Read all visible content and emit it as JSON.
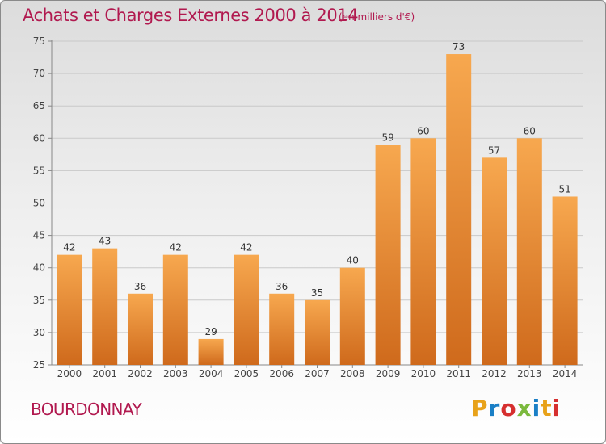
{
  "header": {
    "title": "Achats et Charges Externes 2000 à 2014",
    "subtitle": "(en milliers d'€)"
  },
  "footer": {
    "commune": "BOURDONNAY",
    "logo_text": "Proxiti",
    "logo_colors": [
      "#e8a21a",
      "#1a7fc6",
      "#d62f2f",
      "#7bb93d",
      "#1a7fc6",
      "#e8a21a",
      "#d62f2f"
    ]
  },
  "chart_data": {
    "type": "bar",
    "title": "Achats et Charges Externes 2000 à 2014",
    "subtitle": "(en milliers d'€)",
    "categories": [
      "2000",
      "2001",
      "2002",
      "2003",
      "2004",
      "2005",
      "2006",
      "2007",
      "2008",
      "2009",
      "2010",
      "2011",
      "2012",
      "2013",
      "2014"
    ],
    "values": [
      42,
      43,
      36,
      42,
      29,
      42,
      36,
      35,
      40,
      59,
      60,
      73,
      57,
      60,
      51
    ],
    "ylim": [
      25,
      75
    ],
    "yticks": [
      25,
      30,
      35,
      40,
      45,
      50,
      55,
      60,
      65,
      70,
      75
    ],
    "grid": true,
    "bar_color_top": "#f7a84f",
    "bar_color_bottom": "#cf6a1c"
  }
}
